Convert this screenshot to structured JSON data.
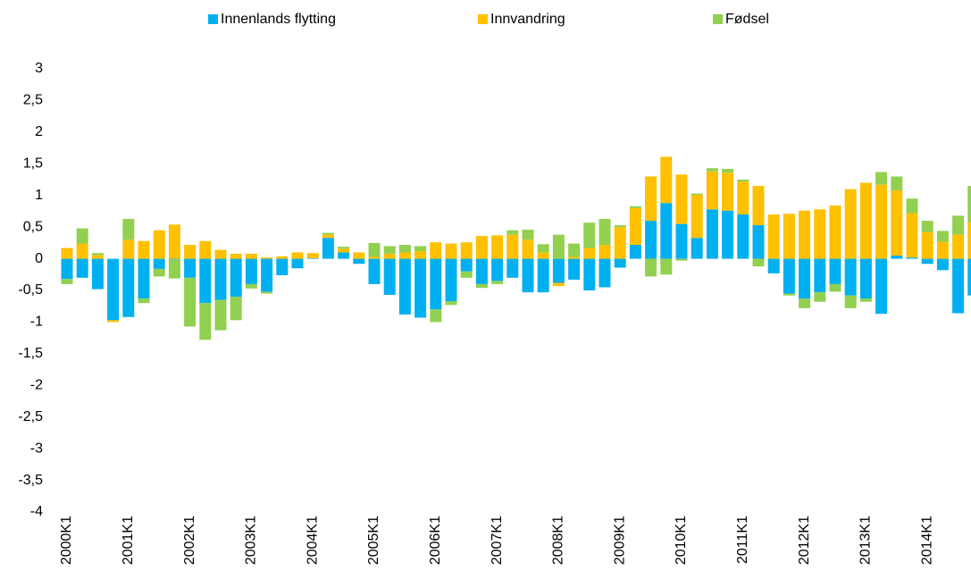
{
  "chart_data": {
    "type": "bar",
    "stacked": true,
    "categories": [
      "2000K1",
      null,
      null,
      null,
      "2001K1",
      null,
      null,
      null,
      "2002K1",
      null,
      null,
      null,
      "2003K1",
      null,
      null,
      null,
      "2004K1",
      null,
      null,
      null,
      "2005K1",
      null,
      null,
      null,
      "2006K1",
      null,
      null,
      null,
      "2007K1",
      null,
      null,
      null,
      "2008K1",
      null,
      null,
      null,
      "2009K1",
      null,
      null,
      null,
      "2010K1",
      null,
      null,
      null,
      "2011K1",
      null,
      null,
      null,
      "2012K1",
      null,
      null,
      null,
      "2013K1",
      null,
      null,
      null,
      "2014K1",
      null,
      null,
      null
    ],
    "series": [
      {
        "name": "Innenlands flytting",
        "color": "#00b0f0",
        "values": [
          -0.32,
          -0.3,
          -0.48,
          -0.97,
          -0.92,
          -0.63,
          -0.16,
          -0.01,
          -0.3,
          -0.7,
          -0.65,
          -0.6,
          -0.4,
          -0.52,
          -0.26,
          -0.15,
          0.01,
          0.33,
          0.1,
          -0.08,
          -0.4,
          -0.57,
          -0.88,
          -0.93,
          -0.8,
          -0.67,
          -0.2,
          -0.4,
          -0.35,
          -0.3,
          -0.53,
          -0.53,
          -0.38,
          -0.33,
          -0.5,
          -0.45,
          -0.14,
          0.22,
          0.6,
          0.88,
          0.55,
          0.33,
          0.78,
          0.76,
          0.7,
          0.53,
          -0.23,
          -0.55,
          -0.63,
          -0.53,
          -0.4,
          -0.58,
          -0.63,
          -0.87,
          0.05,
          0.02,
          -0.08,
          -0.18,
          -0.86,
          -0.58
        ]
      },
      {
        "name": "Innvandring",
        "color": "#ffc000",
        "values": [
          0.17,
          0.24,
          0.06,
          -0.03,
          0.3,
          0.28,
          0.45,
          0.54,
          0.22,
          0.28,
          0.14,
          0.08,
          0.08,
          0.02,
          0.04,
          0.1,
          0.08,
          0.05,
          0.06,
          0.1,
          0.03,
          0.08,
          0.1,
          0.12,
          0.26,
          0.24,
          0.26,
          0.36,
          0.37,
          0.38,
          0.3,
          0.1,
          -0.05,
          0.03,
          0.17,
          0.22,
          0.5,
          0.58,
          0.7,
          0.73,
          0.78,
          0.68,
          0.6,
          0.6,
          0.52,
          0.62,
          0.7,
          0.71,
          0.76,
          0.78,
          0.84,
          1.1,
          1.2,
          1.17,
          1.03,
          0.7,
          0.42,
          0.27,
          0.38,
          0.58
        ]
      },
      {
        "name": "Fødsel",
        "color": "#92d050",
        "values": [
          -0.08,
          0.24,
          0.03,
          0,
          0.33,
          -0.07,
          -0.12,
          -0.3,
          -0.77,
          -0.58,
          -0.48,
          -0.37,
          -0.07,
          -0.03,
          0,
          0,
          0,
          0.03,
          0.03,
          0,
          0.22,
          0.12,
          0.12,
          0.08,
          -0.2,
          -0.06,
          -0.1,
          -0.06,
          -0.05,
          0.07,
          0.16,
          0.13,
          0.38,
          0.21,
          0.4,
          0.41,
          0.03,
          0.03,
          -0.28,
          -0.25,
          -0.03,
          0.02,
          0.05,
          0.06,
          0.03,
          -0.12,
          0,
          -0.03,
          -0.15,
          -0.15,
          -0.12,
          -0.2,
          -0.05,
          0.2,
          0.22,
          0.23,
          0.18,
          0.17,
          0.3,
          0.57
        ]
      }
    ],
    "ylim": [
      -4,
      3
    ],
    "yticks": [
      -4,
      {
        "value": -3.5,
        "label": "-3,5"
      },
      -3,
      {
        "value": -2.5,
        "label": "-2,5"
      },
      -2,
      {
        "value": -1.5,
        "label": "-1,5"
      },
      -1,
      {
        "value": -0.5,
        "label": "-0,5"
      },
      0,
      {
        "value": 0.5,
        "label": "0,5"
      },
      1,
      {
        "value": 1.5,
        "label": "1,5"
      },
      2,
      {
        "value": 2.5,
        "label": "2,5"
      },
      3
    ],
    "legend": "top"
  }
}
